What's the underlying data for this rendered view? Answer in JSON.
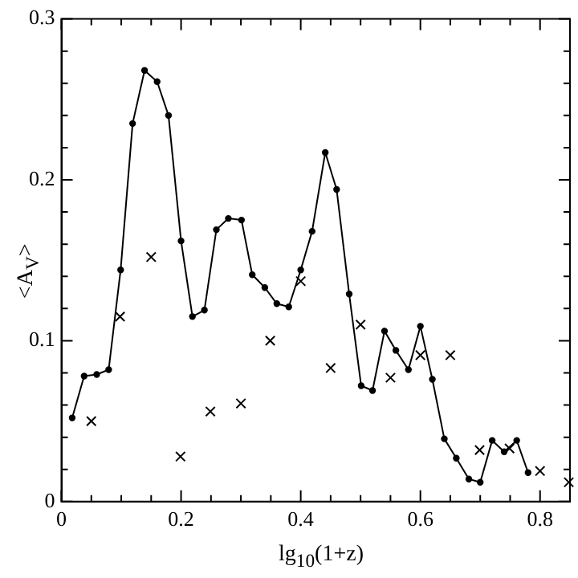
{
  "chart_data": {
    "type": "line",
    "xlabel": "lg$_{10}$(1+z)",
    "ylabel": "<A$_{V}$>",
    "xlim": [
      0,
      0.85
    ],
    "ylim": [
      0,
      0.3
    ],
    "xticks": [
      0,
      {
        "value": 0.05,
        "label": null
      },
      {
        "value": 0.1,
        "label": null
      },
      {
        "value": 0.15,
        "label": null
      },
      0.2,
      {
        "value": 0.25,
        "label": null
      },
      {
        "value": 0.3,
        "label": null
      },
      {
        "value": 0.35,
        "label": null
      },
      0.4,
      {
        "value": 0.45,
        "label": null
      },
      {
        "value": 0.5,
        "label": null
      },
      {
        "value": 0.55,
        "label": null
      },
      0.6,
      {
        "value": 0.65,
        "label": null
      },
      {
        "value": 0.7,
        "label": null
      },
      {
        "value": 0.75,
        "label": null
      },
      0.8
    ],
    "yticks": [
      0,
      {
        "value": 0.02,
        "label": null
      },
      {
        "value": 0.04,
        "label": null
      },
      {
        "value": 0.06,
        "label": null
      },
      {
        "value": 0.08,
        "label": null
      },
      0.1,
      {
        "value": 0.12,
        "label": null
      },
      {
        "value": 0.14,
        "label": null
      },
      {
        "value": 0.16,
        "label": null
      },
      {
        "value": 0.18,
        "label": null
      },
      0.2,
      {
        "value": 0.22,
        "label": null
      },
      {
        "value": 0.24,
        "label": null
      },
      {
        "value": 0.26,
        "label": null
      },
      {
        "value": 0.28,
        "label": null
      },
      0.3
    ],
    "grid": false,
    "legend": false,
    "series": [
      {
        "type": "line",
        "color": "#000000",
        "marker": "circle",
        "line_style": "solid",
        "x": [
          0.018,
          0.038,
          0.059,
          0.079,
          0.099,
          0.119,
          0.139,
          0.16,
          0.179,
          0.2,
          0.219,
          0.239,
          0.259,
          0.279,
          0.301,
          0.319,
          0.34,
          0.36,
          0.38,
          0.4,
          0.419,
          0.441,
          0.46,
          0.481,
          0.501,
          0.52,
          0.54,
          0.559,
          0.58,
          0.6,
          0.62,
          0.64,
          0.66,
          0.681,
          0.7,
          0.72,
          0.74,
          0.761,
          0.78
        ],
        "values": [
          0.052,
          0.078,
          0.079,
          0.082,
          0.144,
          0.235,
          0.268,
          0.261,
          0.24,
          0.162,
          0.115,
          0.119,
          0.169,
          0.176,
          0.175,
          0.141,
          0.133,
          0.123,
          0.121,
          0.144,
          0.168,
          0.217,
          0.194,
          0.129,
          0.072,
          0.069,
          0.106,
          0.094,
          0.082,
          0.109,
          0.076,
          0.039,
          0.027,
          0.014,
          0.012,
          0.038,
          0.031,
          0.038,
          0.018
        ]
      },
      {
        "type": "scatter",
        "color": "#000000",
        "marker": "cross",
        "x": [
          0.05,
          0.098,
          0.15,
          0.199,
          0.249,
          0.3,
          0.349,
          0.4,
          0.45,
          0.5,
          0.55,
          0.6,
          0.65,
          0.699,
          0.749,
          0.8,
          0.848
        ],
        "values": [
          0.05,
          0.115,
          0.152,
          0.028,
          0.056,
          0.061,
          0.1,
          0.137,
          0.083,
          0.11,
          0.077,
          0.091,
          0.091,
          0.032,
          0.033,
          0.019,
          0.012
        ]
      }
    ]
  }
}
